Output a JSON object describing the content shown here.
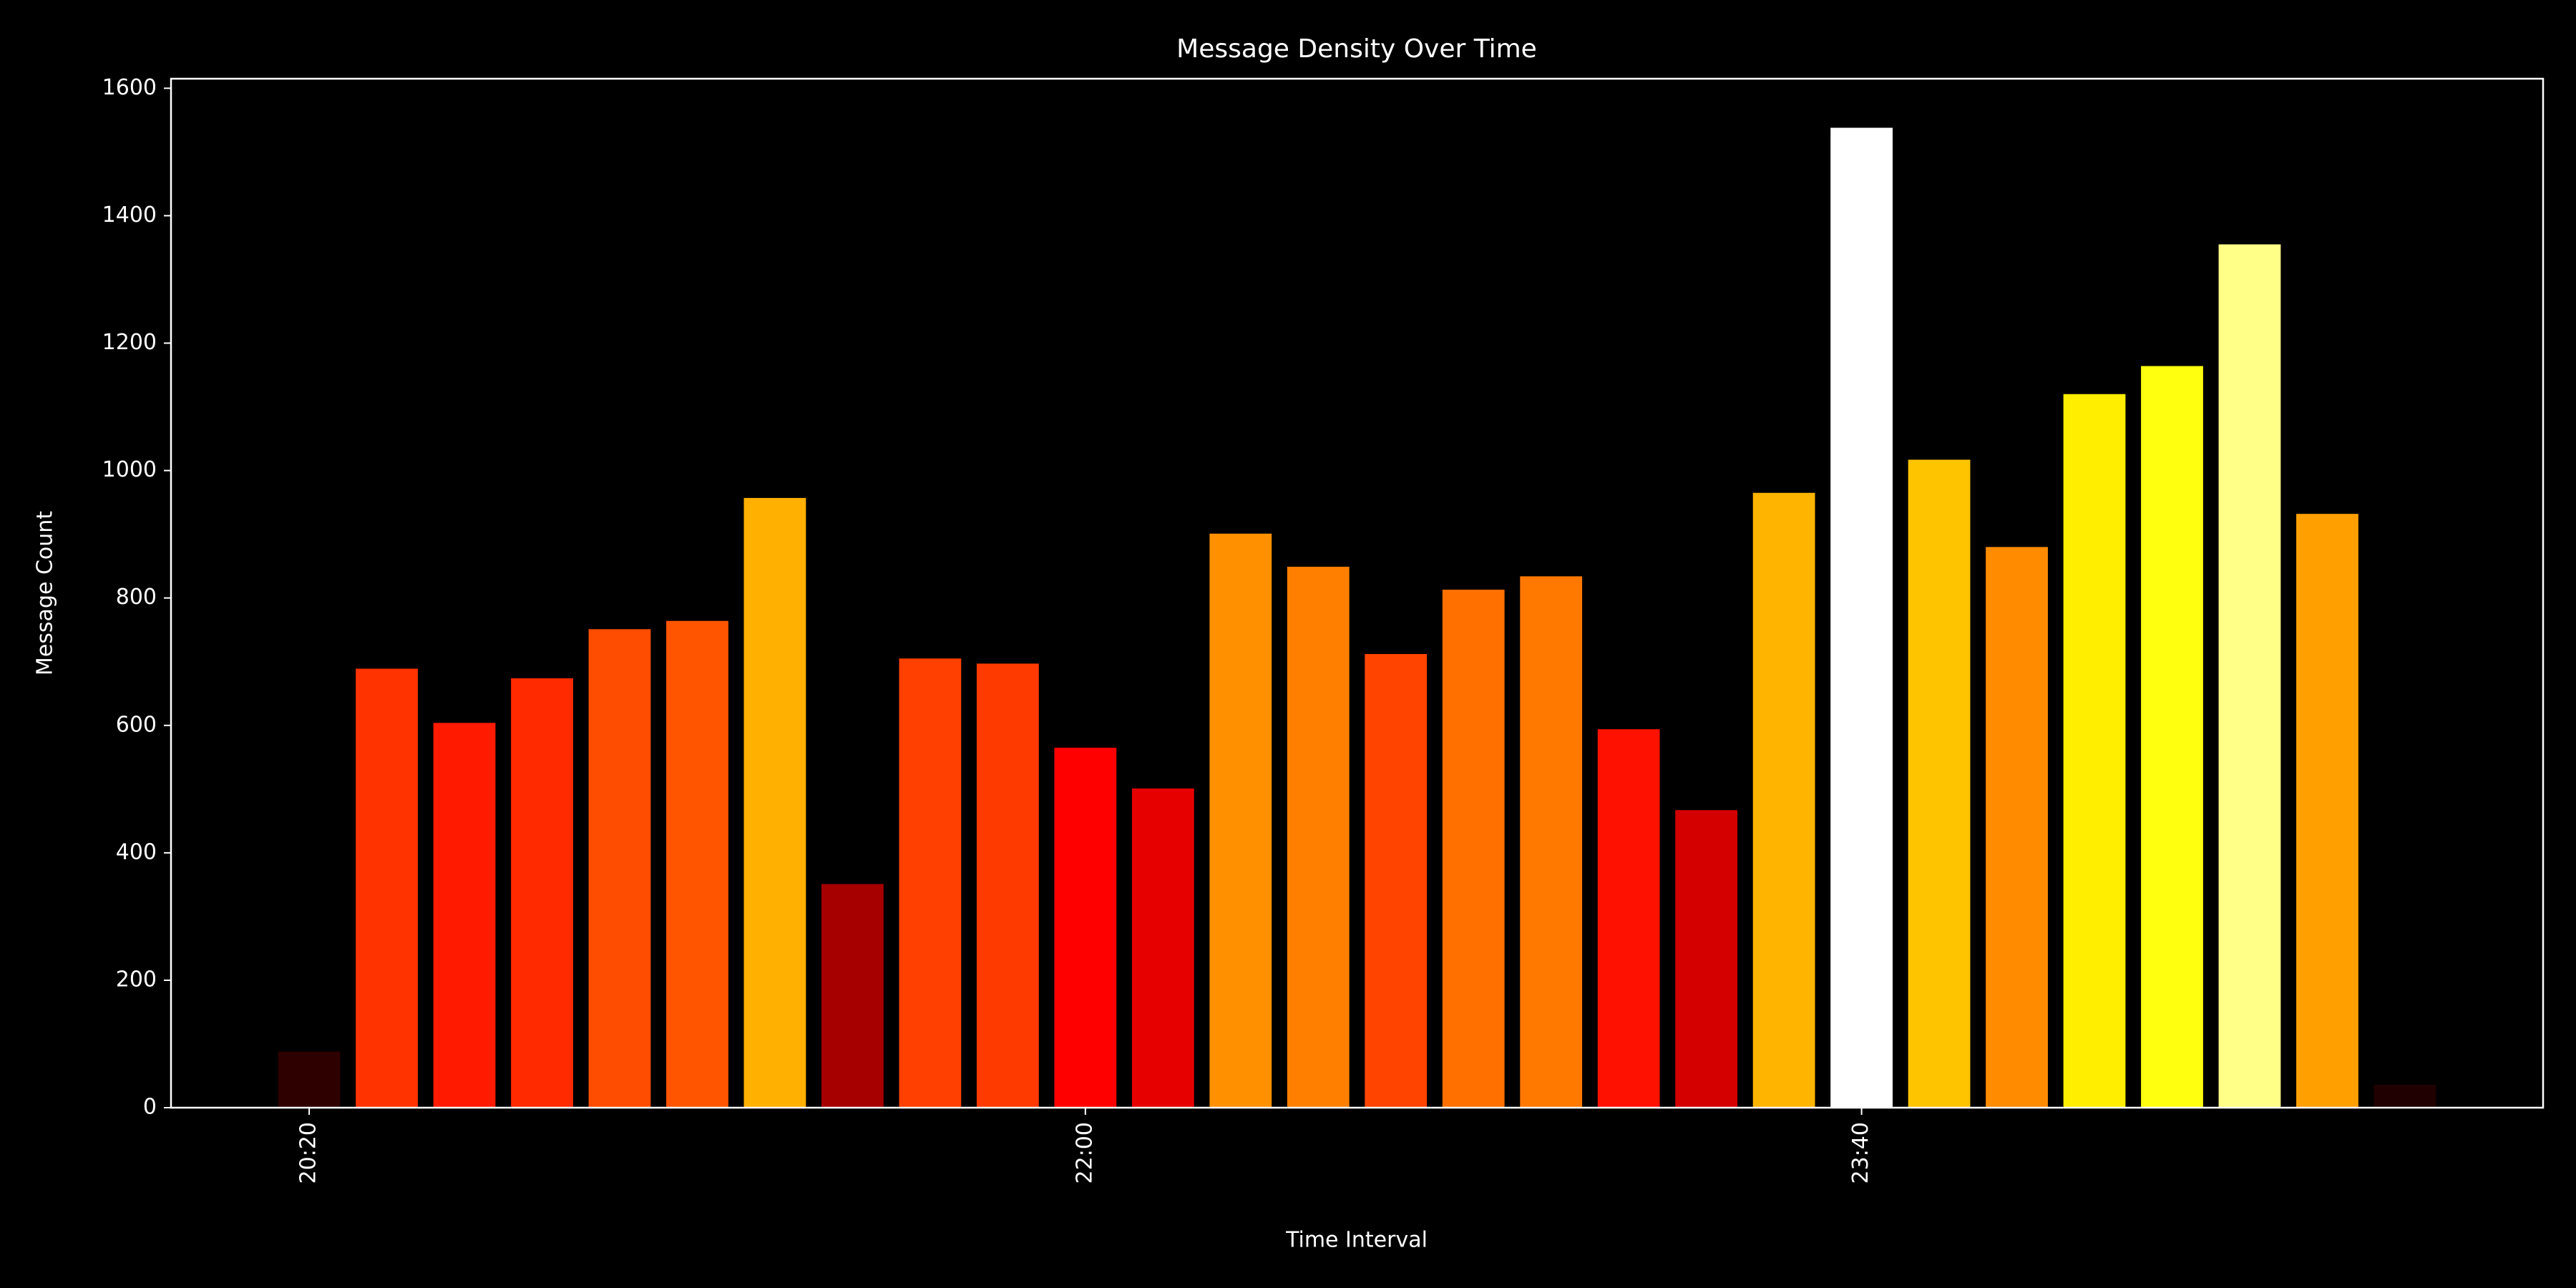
{
  "chart_data": {
    "type": "bar",
    "title": "Message Density Over Time",
    "x_label": "Time Interval",
    "y_label": "Message Count",
    "categories": [
      "20:20",
      null,
      null,
      null,
      null,
      null,
      null,
      null,
      null,
      null,
      "22:00",
      null,
      null,
      null,
      null,
      null,
      null,
      null,
      null,
      null,
      "23:40",
      null,
      null,
      null,
      null,
      null,
      null,
      null
    ],
    "values": [
      88,
      689,
      604,
      674,
      751,
      764,
      957,
      351,
      705,
      697,
      565,
      501,
      901,
      849,
      712,
      813,
      834,
      594,
      467,
      965,
      1538,
      1017,
      880,
      1120,
      1164,
      1355,
      932,
      36
    ],
    "colors": [
      "#2e0000",
      "#ff3300",
      "#ff1a00",
      "#ff2a00",
      "#ff4d00",
      "#ff5500",
      "#ffb000",
      "#a60000",
      "#ff4000",
      "#ff3a00",
      "#ff0000",
      "#e60000",
      "#ff9000",
      "#ff8000",
      "#ff4400",
      "#ff7000",
      "#ff7800",
      "#ff1100",
      "#d40000",
      "#ffb400",
      "#ffffff",
      "#ffc400",
      "#ff8c00",
      "#ffee00",
      "#ffff10",
      "#ffff88",
      "#ffa000",
      "#200000"
    ],
    "ylim": [
      0,
      1615
    ],
    "yticks": [
      0,
      200,
      400,
      600,
      800,
      1000,
      1200,
      1400,
      1600
    ]
  }
}
